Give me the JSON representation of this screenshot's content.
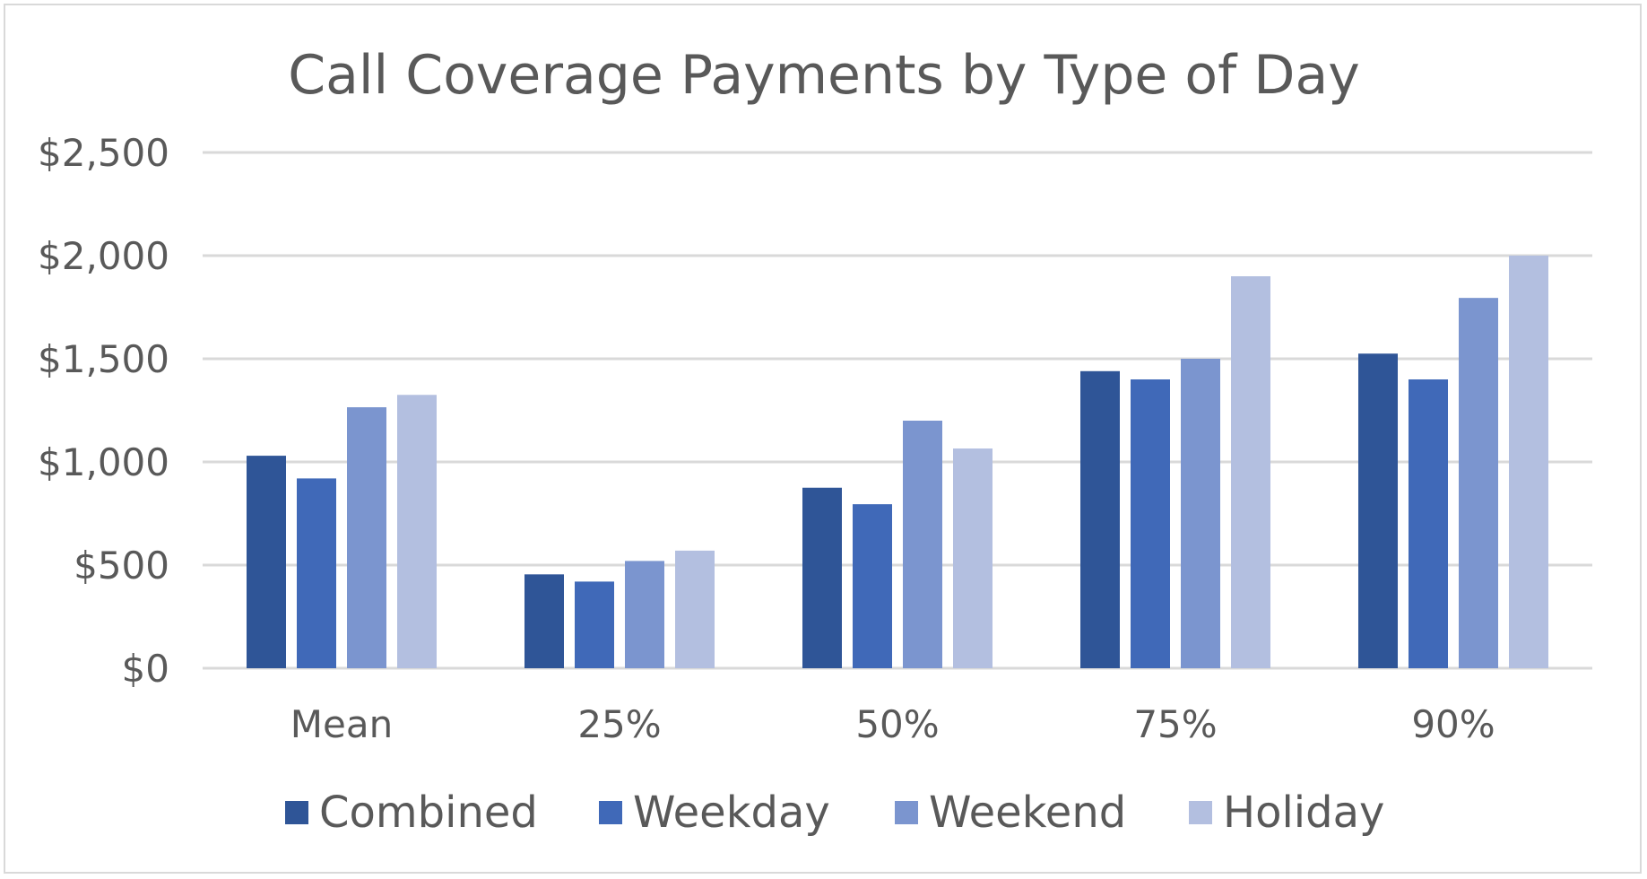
{
  "chart_data": {
    "type": "bar",
    "title": "Call Coverage Payments by Type of Day",
    "xlabel": "",
    "ylabel": "",
    "categories": [
      "Mean",
      "25%",
      "50%",
      "75%",
      "90%"
    ],
    "series": [
      {
        "name": "Combined",
        "color": "#2f5597",
        "values": [
          1030,
          455,
          875,
          1440,
          1525
        ]
      },
      {
        "name": "Weekday",
        "color": "#4069b8",
        "values": [
          920,
          420,
          795,
          1400,
          1400
        ]
      },
      {
        "name": "Weekend",
        "color": "#7b95cf",
        "values": [
          1265,
          520,
          1200,
          1500,
          1795
        ]
      },
      {
        "name": "Holiday",
        "color": "#b3bfe0",
        "values": [
          1325,
          570,
          1065,
          1900,
          2000
        ]
      }
    ],
    "ylim": [
      0,
      2500
    ],
    "y_ticks": [
      0,
      500,
      1000,
      1500,
      2000,
      2500
    ],
    "y_tick_labels": [
      "$0",
      "$500",
      "$1,000",
      "$1,500",
      "$2,000",
      "$2,500"
    ],
    "grid": true,
    "legend_position": "bottom",
    "colors": {
      "gridline": "#d9d9d9",
      "text": "#595959"
    }
  }
}
